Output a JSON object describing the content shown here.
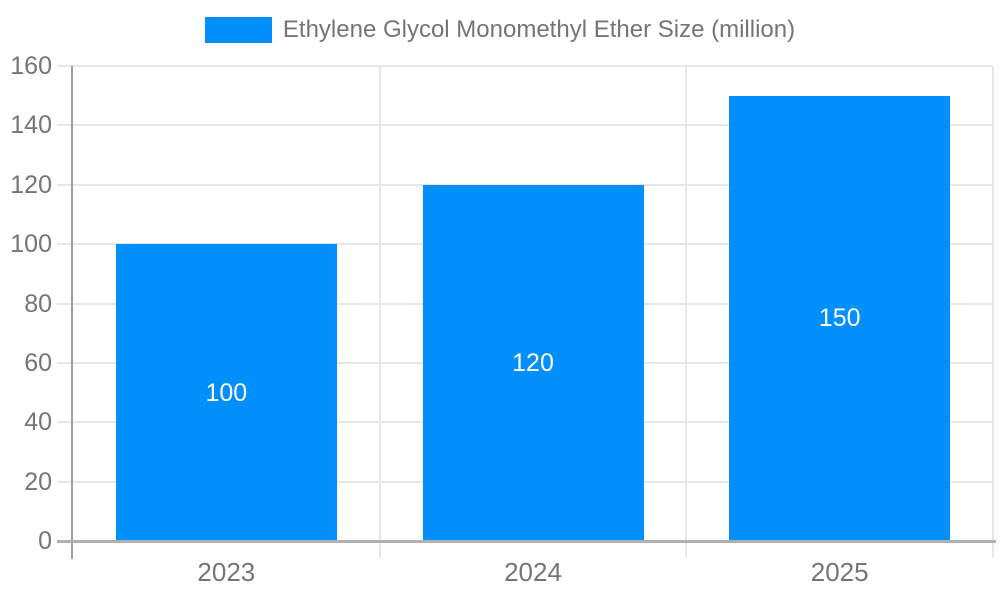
{
  "chart_data": {
    "type": "bar",
    "title": "Ethylene Glycol Monomethyl Ether Size (million)",
    "categories": [
      "2023",
      "2024",
      "2025"
    ],
    "series": [
      {
        "name": "Ethylene Glycol Monomethyl Ether Size (million)",
        "values": [
          100,
          120,
          150
        ],
        "color": "#008FFB"
      }
    ],
    "data_labels": [
      "100",
      "120",
      "150"
    ],
    "xlabel": "",
    "ylabel": "",
    "ylim": [
      0,
      160
    ],
    "yticks": [
      0,
      20,
      40,
      60,
      80,
      100,
      120,
      140,
      160
    ],
    "legend_position": "top",
    "grid": {
      "horizontal": true,
      "vertical": true
    }
  },
  "colors": {
    "bar": "#008FFB",
    "label_text": "#757575",
    "gridline": "#e7e7e7",
    "zero_line": "#b0b0b0",
    "y_axis_line": "#9e9e9e",
    "data_label": "#ffffff",
    "background": "#ffffff"
  }
}
